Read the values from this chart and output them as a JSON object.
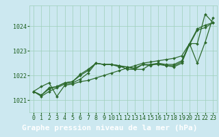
{
  "title": "Graphe pression niveau de la mer (hPa)",
  "xlabel_ticks": [
    "0",
    "1",
    "2",
    "3",
    "4",
    "5",
    "6",
    "7",
    "8",
    "9",
    "10",
    "11",
    "12",
    "13",
    "14",
    "15",
    "16",
    "17",
    "18",
    "19",
    "20",
    "21",
    "22",
    "23"
  ],
  "yticks": [
    1021,
    1022,
    1023,
    1024
  ],
  "ylim": [
    1020.5,
    1024.85
  ],
  "xlim": [
    -0.5,
    23.5
  ],
  "bg_color": "#cce8f0",
  "grid_color": "#9ecfb8",
  "line_color": "#2d6a2d",
  "title_color": "#1a5c1a",
  "series": [
    [
      1021.35,
      1021.55,
      1021.7,
      1021.15,
      1021.6,
      1021.65,
      1021.75,
      1021.8,
      1021.9,
      1022.0,
      1022.1,
      1022.2,
      1022.3,
      1022.4,
      1022.5,
      1022.55,
      1022.6,
      1022.65,
      1022.7,
      1022.8,
      1023.3,
      1023.9,
      1024.05,
      1024.15
    ],
    [
      1021.35,
      1021.2,
      1021.5,
      1021.55,
      1021.7,
      1021.75,
      1022.0,
      1022.2,
      1022.5,
      1022.45,
      1022.45,
      1022.35,
      1022.35,
      1022.25,
      1022.25,
      1022.45,
      1022.45,
      1022.4,
      1022.35,
      1022.5,
      1023.3,
      1022.5,
      1023.35,
      1024.35
    ],
    [
      1021.35,
      1021.2,
      1021.45,
      1021.55,
      1021.7,
      1021.75,
      1022.05,
      1022.25,
      1022.5,
      1022.45,
      1022.45,
      1022.4,
      1022.35,
      1022.3,
      1022.45,
      1022.45,
      1022.5,
      1022.45,
      1022.45,
      1022.6,
      1023.3,
      1023.3,
      1024.5,
      1024.15
    ],
    [
      1021.35,
      1021.15,
      1021.35,
      1021.5,
      1021.65,
      1021.7,
      1021.85,
      1022.1,
      1022.5,
      1022.45,
      1022.45,
      1022.4,
      1022.25,
      1022.25,
      1022.45,
      1022.4,
      1022.5,
      1022.4,
      1022.4,
      1022.55,
      1023.25,
      1023.85,
      1023.95,
      1024.15
    ]
  ],
  "marker": "D",
  "marker_size": 2.0,
  "line_width": 0.9,
  "title_fontsize": 8,
  "tick_fontsize": 6.0,
  "title_bg_color": "#2d6a2d",
  "title_text_color": "#ffffff"
}
